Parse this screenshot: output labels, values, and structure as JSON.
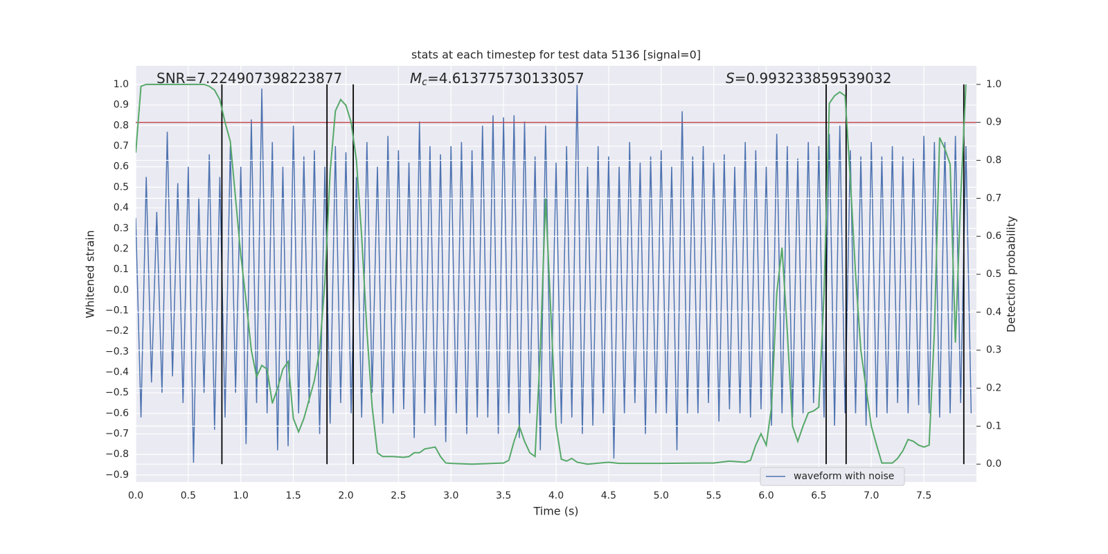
{
  "chart_data": {
    "type": "line",
    "title": "stats at each timestep for test data 5136 [signal=0]",
    "xlabel": "Time (s)",
    "ylabel": "Whitened strain",
    "y2label": "Detection probability",
    "xlim": [
      0,
      8.0
    ],
    "ylim": [
      -0.934,
      1.091
    ],
    "y2lim": [
      -0.047,
      1.049
    ],
    "grid": true,
    "legend": "lower right",
    "xticks": [
      {
        "value": 0,
        "label": "0.0"
      },
      {
        "value": 0.5,
        "label": "0.5"
      },
      {
        "value": 1,
        "label": "1.0"
      },
      {
        "value": 1.5,
        "label": "1.5"
      },
      {
        "value": 2,
        "label": "2.0"
      },
      {
        "value": 2.5,
        "label": "2.5"
      },
      {
        "value": 3,
        "label": "3.0"
      },
      {
        "value": 3.5,
        "label": "3.5"
      },
      {
        "value": 4,
        "label": "4.0"
      },
      {
        "value": 4.5,
        "label": "4.5"
      },
      {
        "value": 5,
        "label": "5.0"
      },
      {
        "value": 5.5,
        "label": "5.5"
      },
      {
        "value": 6,
        "label": "6.0"
      },
      {
        "value": 6.5,
        "label": "6.5"
      },
      {
        "value": 7,
        "label": "7.0"
      },
      {
        "value": 7.5,
        "label": "7.5"
      }
    ],
    "yticks": [
      {
        "value": 1,
        "label": "1.0"
      },
      {
        "value": 0.9,
        "label": "0.9"
      },
      {
        "value": 0.8,
        "label": "0.8"
      },
      {
        "value": 0.7,
        "label": "0.7"
      },
      {
        "value": 0.6,
        "label": "0.6"
      },
      {
        "value": 0.5,
        "label": "0.5"
      },
      {
        "value": 0.4,
        "label": "0.4"
      },
      {
        "value": 0.3,
        "label": "0.3"
      },
      {
        "value": 0.2,
        "label": "0.2"
      },
      {
        "value": 0.1,
        "label": "0.1"
      },
      {
        "value": 0,
        "label": "0.0"
      },
      {
        "value": -0.1,
        "label": "−0.1"
      },
      {
        "value": -0.2,
        "label": "−0.2"
      },
      {
        "value": -0.3,
        "label": "−0.3"
      },
      {
        "value": -0.4,
        "label": "−0.4"
      },
      {
        "value": -0.5,
        "label": "−0.5"
      },
      {
        "value": -0.6,
        "label": "−0.6"
      },
      {
        "value": -0.7,
        "label": "−0.7"
      },
      {
        "value": -0.8,
        "label": "−0.8"
      },
      {
        "value": -0.9,
        "label": "−0.9"
      }
    ],
    "y2ticks": [
      {
        "value": 0,
        "label": "0.0"
      },
      {
        "value": 0.1,
        "label": "0.1"
      },
      {
        "value": 0.2,
        "label": "0.2"
      },
      {
        "value": 0.3,
        "label": "0.3"
      },
      {
        "value": 0.4,
        "label": "0.4"
      },
      {
        "value": 0.5,
        "label": "0.5"
      },
      {
        "value": 0.6,
        "label": "0.6"
      },
      {
        "value": 0.7,
        "label": "0.7"
      },
      {
        "value": 0.8,
        "label": "0.8"
      },
      {
        "value": 0.9,
        "label": "0.9"
      },
      {
        "value": 1,
        "label": "1.0"
      }
    ],
    "annotations": [
      {
        "parts": [
          {
            "text": "SNR=7.224907398223877"
          }
        ]
      },
      {
        "parts": [
          {
            "text": "M",
            "style": "italic"
          },
          {
            "text": "c",
            "style": "sub"
          },
          {
            "text": "=4.613775730133057"
          }
        ]
      },
      {
        "parts": [
          {
            "text": "S",
            "style": "italic"
          },
          {
            "text": "=0.993233859539032"
          }
        ]
      }
    ],
    "threshold": {
      "value": 0.9,
      "axis": "y2",
      "color": "#c44e52"
    },
    "vlines": {
      "x": [
        0.82,
        1.82,
        2.07,
        6.57,
        6.76,
        7.88
      ],
      "ymin": 0,
      "ymax": 1,
      "axis": "y2",
      "color": "#000000"
    },
    "series": [
      {
        "name": "waveform with noise",
        "color": "#4c72b0",
        "x": [
          0,
          0.05,
          0.1,
          0.15,
          0.2,
          0.25,
          0.3,
          0.35,
          0.4,
          0.45,
          0.5,
          0.55,
          0.6,
          0.65,
          0.7,
          0.75,
          0.8,
          0.85,
          0.9,
          0.95,
          1,
          1.05,
          1.1,
          1.15,
          1.2,
          1.25,
          1.3,
          1.35,
          1.4,
          1.45,
          1.5,
          1.55,
          1.6,
          1.65,
          1.7,
          1.75,
          1.8,
          1.85,
          1.9,
          1.95,
          2,
          2.05,
          2.1,
          2.15,
          2.2,
          2.25,
          2.3,
          2.35,
          2.4,
          2.45,
          2.5,
          2.55,
          2.6,
          2.65,
          2.7,
          2.75,
          2.8,
          2.85,
          2.9,
          2.95,
          3,
          3.05,
          3.1,
          3.15,
          3.2,
          3.25,
          3.3,
          3.35,
          3.4,
          3.45,
          3.5,
          3.55,
          3.6,
          3.65,
          3.7,
          3.75,
          3.8,
          3.85,
          3.9,
          3.95,
          4,
          4.05,
          4.1,
          4.15,
          4.2,
          4.25,
          4.3,
          4.35,
          4.4,
          4.45,
          4.5,
          4.55,
          4.6,
          4.65,
          4.7,
          4.75,
          4.8,
          4.85,
          4.9,
          4.95,
          5,
          5.05,
          5.1,
          5.15,
          5.2,
          5.25,
          5.3,
          5.35,
          5.4,
          5.45,
          5.5,
          5.55,
          5.6,
          5.65,
          5.7,
          5.75,
          5.8,
          5.85,
          5.9,
          5.95,
          6,
          6.05,
          6.1,
          6.15,
          6.2,
          6.25,
          6.3,
          6.35,
          6.4,
          6.45,
          6.5,
          6.55,
          6.6,
          6.65,
          6.7,
          6.75,
          6.8,
          6.85,
          6.9,
          6.95,
          7,
          7.05,
          7.1,
          7.15,
          7.2,
          7.25,
          7.3,
          7.35,
          7.4,
          7.45,
          7.5,
          7.55,
          7.6,
          7.65,
          7.7,
          7.75,
          7.8,
          7.85,
          7.9,
          7.95
        ],
        "values": [
          0.35,
          -0.62,
          0.55,
          -0.45,
          0.38,
          -0.5,
          0.77,
          -0.42,
          0.52,
          -0.55,
          0.6,
          -0.84,
          0.45,
          -0.5,
          0.66,
          -0.68,
          0.55,
          -0.62,
          0.7,
          -0.5,
          0.6,
          -0.75,
          0.83,
          -0.55,
          0.98,
          -0.6,
          0.72,
          -0.78,
          0.6,
          -0.76,
          0.8,
          -0.6,
          0.65,
          -0.55,
          0.68,
          -0.7,
          0.6,
          -0.65,
          0.7,
          -0.55,
          0.67,
          -0.6,
          0.55,
          -0.62,
          0.72,
          -0.5,
          0.6,
          -0.65,
          0.75,
          -0.6,
          0.68,
          -0.58,
          0.62,
          -0.72,
          0.82,
          -0.6,
          0.7,
          -0.66,
          0.66,
          -0.74,
          0.7,
          -0.6,
          0.72,
          -0.7,
          0.68,
          -0.62,
          0.8,
          -0.62,
          0.85,
          -0.7,
          0.84,
          -0.6,
          0.85,
          -0.72,
          0.82,
          -0.6,
          0.65,
          -0.78,
          0.8,
          -0.6,
          0.62,
          -0.65,
          0.7,
          -0.62,
          1.0,
          -0.7,
          0.6,
          -0.66,
          0.7,
          -0.6,
          0.65,
          -0.82,
          0.6,
          -0.6,
          0.72,
          -0.55,
          0.62,
          -0.7,
          0.65,
          -0.6,
          0.68,
          -0.6,
          0.6,
          -0.78,
          0.87,
          -0.6,
          0.65,
          -0.6,
          0.7,
          -0.55,
          0.62,
          -0.64,
          0.66,
          -0.58,
          0.6,
          -0.6,
          0.72,
          -0.62,
          0.68,
          -0.58,
          0.6,
          -0.66,
          0.76,
          -0.6,
          0.7,
          -0.62,
          0.64,
          -0.6,
          0.72,
          -0.55,
          0.7,
          -0.62,
          0.76,
          -0.66,
          0.8,
          -0.6,
          0.68,
          -0.6,
          0.65,
          -0.66,
          0.72,
          -0.62,
          0.65,
          -0.6,
          0.7,
          -0.55,
          0.65,
          -0.6,
          0.64,
          -0.56,
          0.75,
          -0.6,
          0.72,
          -0.62,
          0.72,
          -0.6,
          0.75,
          -0.55,
          0.7,
          -0.6
        ]
      },
      {
        "color": "#55a868",
        "axis": "y2",
        "x": [
          0,
          0.05,
          0.1,
          0.2,
          0.3,
          0.4,
          0.5,
          0.6,
          0.65,
          0.7,
          0.75,
          0.8,
          0.85,
          0.9,
          0.95,
          1,
          1.05,
          1.1,
          1.15,
          1.2,
          1.25,
          1.3,
          1.35,
          1.4,
          1.45,
          1.5,
          1.55,
          1.6,
          1.65,
          1.7,
          1.75,
          1.8,
          1.85,
          1.9,
          1.95,
          2,
          2.05,
          2.1,
          2.15,
          2.2,
          2.25,
          2.3,
          2.35,
          2.45,
          2.55,
          2.6,
          2.65,
          2.7,
          2.75,
          2.85,
          2.9,
          2.95,
          3,
          3.2,
          3.4,
          3.5,
          3.55,
          3.6,
          3.65,
          3.7,
          3.75,
          3.8,
          3.85,
          3.9,
          3.95,
          4,
          4.05,
          4.1,
          4.15,
          4.2,
          4.3,
          4.5,
          4.6,
          5,
          5.5,
          5.65,
          5.8,
          5.85,
          5.9,
          5.95,
          6,
          6.05,
          6.1,
          6.15,
          6.2,
          6.25,
          6.3,
          6.35,
          6.4,
          6.45,
          6.5,
          6.55,
          6.6,
          6.65,
          6.7,
          6.75,
          6.8,
          6.85,
          6.9,
          6.95,
          7,
          7.05,
          7.1,
          7.2,
          7.25,
          7.3,
          7.35,
          7.4,
          7.45,
          7.5,
          7.55,
          7.6,
          7.65,
          7.7,
          7.75,
          7.8,
          7.85,
          7.9
        ],
        "values": [
          0.82,
          0.995,
          1,
          1,
          1,
          1,
          1,
          1,
          1,
          0.995,
          0.985,
          0.96,
          0.9,
          0.85,
          0.7,
          0.55,
          0.43,
          0.3,
          0.23,
          0.26,
          0.25,
          0.16,
          0.2,
          0.25,
          0.27,
          0.12,
          0.085,
          0.12,
          0.17,
          0.22,
          0.3,
          0.48,
          0.77,
          0.93,
          0.96,
          0.945,
          0.9,
          0.8,
          0.6,
          0.35,
          0.15,
          0.03,
          0.02,
          0.02,
          0.018,
          0.02,
          0.03,
          0.03,
          0.04,
          0.045,
          0.02,
          0.003,
          0.002,
          0,
          0.002,
          0.003,
          0.01,
          0.06,
          0.1,
          0.06,
          0.03,
          0.02,
          0.3,
          0.7,
          0.4,
          0.1,
          0.013,
          0.008,
          0.015,
          0.005,
          0,
          0.005,
          0.002,
          0.002,
          0.003,
          0.008,
          0.005,
          0.01,
          0.05,
          0.08,
          0.05,
          0.15,
          0.45,
          0.57,
          0.35,
          0.1,
          0.06,
          0.1,
          0.135,
          0.14,
          0.15,
          0.45,
          0.95,
          0.97,
          0.98,
          0.97,
          0.75,
          0.5,
          0.3,
          0.2,
          0.1,
          0.05,
          0.003,
          0.003,
          0.015,
          0.035,
          0.065,
          0.06,
          0.05,
          0.045,
          0.05,
          0.35,
          0.86,
          0.83,
          0.79,
          0.32,
          0.7,
          1.0
        ]
      }
    ]
  }
}
